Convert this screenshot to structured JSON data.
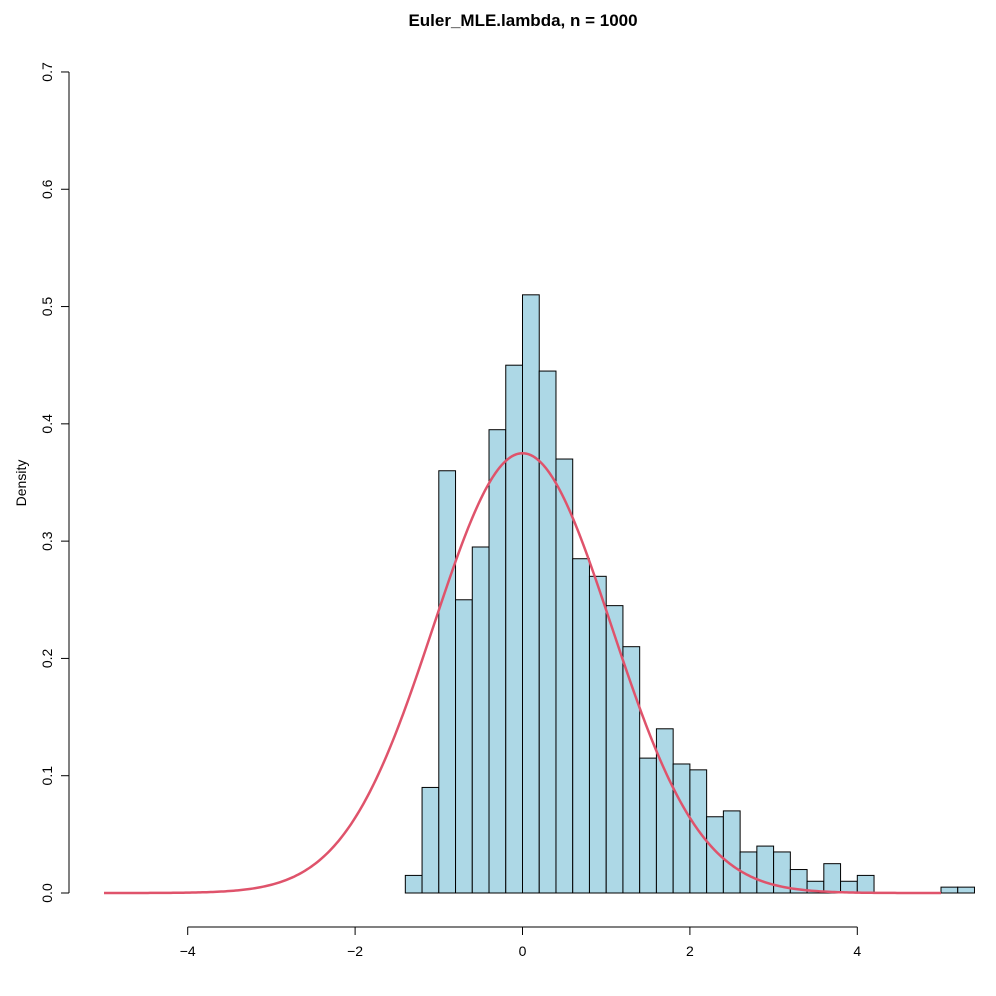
{
  "chart_data": {
    "type": "bar",
    "subtype": "histogram",
    "title": "Euler_MLE.lambda, n = 1000",
    "xlabel": "",
    "ylabel": "Density",
    "xlim": [
      -5,
      5.4
    ],
    "ylim": [
      0,
      0.7
    ],
    "x_ticks": [
      -4,
      -2,
      0,
      2,
      4
    ],
    "x_tick_labels": [
      "−4",
      "−2",
      "0",
      "2",
      "4"
    ],
    "y_ticks": [
      0,
      0.1,
      0.2,
      0.3,
      0.4,
      0.5,
      0.6,
      0.7
    ],
    "y_tick_labels": [
      "0.0",
      "0.1",
      "0.2",
      "0.3",
      "0.4",
      "0.5",
      "0.6",
      "0.7"
    ],
    "bin_width": 0.2,
    "bins": [
      {
        "x0": -1.4,
        "x1": -1.2,
        "density": 0.015
      },
      {
        "x0": -1.2,
        "x1": -1.0,
        "density": 0.09
      },
      {
        "x0": -1.0,
        "x1": -0.8,
        "density": 0.36
      },
      {
        "x0": -0.8,
        "x1": -0.6,
        "density": 0.25
      },
      {
        "x0": -0.6,
        "x1": -0.4,
        "density": 0.295
      },
      {
        "x0": -0.4,
        "x1": -0.2,
        "density": 0.395
      },
      {
        "x0": -0.2,
        "x1": 0.0,
        "density": 0.45
      },
      {
        "x0": 0.0,
        "x1": 0.2,
        "density": 0.51
      },
      {
        "x0": 0.2,
        "x1": 0.4,
        "density": 0.445
      },
      {
        "x0": 0.4,
        "x1": 0.6,
        "density": 0.37
      },
      {
        "x0": 0.6,
        "x1": 0.8,
        "density": 0.285
      },
      {
        "x0": 0.8,
        "x1": 1.0,
        "density": 0.27
      },
      {
        "x0": 1.0,
        "x1": 1.2,
        "density": 0.245
      },
      {
        "x0": 1.2,
        "x1": 1.4,
        "density": 0.21
      },
      {
        "x0": 1.4,
        "x1": 1.6,
        "density": 0.115
      },
      {
        "x0": 1.6,
        "x1": 1.8,
        "density": 0.14
      },
      {
        "x0": 1.8,
        "x1": 2.0,
        "density": 0.11
      },
      {
        "x0": 2.0,
        "x1": 2.2,
        "density": 0.105
      },
      {
        "x0": 2.2,
        "x1": 2.4,
        "density": 0.065
      },
      {
        "x0": 2.4,
        "x1": 2.6,
        "density": 0.07
      },
      {
        "x0": 2.6,
        "x1": 2.8,
        "density": 0.035
      },
      {
        "x0": 2.8,
        "x1": 3.0,
        "density": 0.04
      },
      {
        "x0": 3.0,
        "x1": 3.2,
        "density": 0.035
      },
      {
        "x0": 3.2,
        "x1": 3.4,
        "density": 0.02
      },
      {
        "x0": 3.4,
        "x1": 3.6,
        "density": 0.01
      },
      {
        "x0": 3.6,
        "x1": 3.8,
        "density": 0.025
      },
      {
        "x0": 3.8,
        "x1": 4.0,
        "density": 0.01
      },
      {
        "x0": 4.0,
        "x1": 4.2,
        "density": 0.015
      },
      {
        "x0": 5.0,
        "x1": 5.2,
        "density": 0.005
      },
      {
        "x0": 5.2,
        "x1": 5.4,
        "density": 0.005
      }
    ],
    "curve": {
      "type": "normal-density",
      "mean": 0,
      "sd": 1.064,
      "x_range": [
        -5,
        5
      ]
    },
    "colors": {
      "bar_fill": "#ADD8E6",
      "bar_stroke": "#000000",
      "curve": "#DF536B"
    },
    "grid": false,
    "legend": "none"
  }
}
